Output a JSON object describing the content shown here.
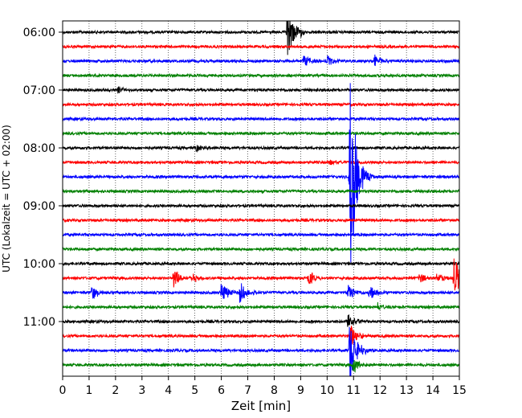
{
  "chart_data": {
    "type": "line",
    "title": "",
    "xlabel": "Zeit  [min]",
    "ylabel": "UTC (Lokalzeit = UTC + 02:00)",
    "xlim": [
      0,
      15
    ],
    "x_ticks": [
      "0",
      "1",
      "2",
      "3",
      "4",
      "5",
      "6",
      "7",
      "8",
      "9",
      "10",
      "11",
      "12",
      "13",
      "14",
      "15"
    ],
    "y_ticks": [
      "06:00",
      "07:00",
      "08:00",
      "09:00",
      "10:00",
      "11:00"
    ],
    "grid": "vertical dotted lines at each minute",
    "trace_interval_minutes": 15,
    "trace_color_cycle": [
      "#000000",
      "#ff0000",
      "#0000ff",
      "#008000"
    ],
    "traces": [
      {
        "start": "06:00",
        "color": "#000000",
        "events": [
          {
            "t": 8.5,
            "amp": 1.9
          },
          {
            "t": 9.0,
            "amp": 0.2
          }
        ]
      },
      {
        "start": "06:15",
        "color": "#ff0000",
        "events": []
      },
      {
        "start": "06:30",
        "color": "#0000ff",
        "events": [
          {
            "t": 9.1,
            "amp": 0.5
          },
          {
            "t": 10.0,
            "amp": 0.4
          },
          {
            "t": 11.8,
            "amp": 0.5
          }
        ]
      },
      {
        "start": "06:45",
        "color": "#008000",
        "events": []
      },
      {
        "start": "07:00",
        "color": "#000000",
        "events": [
          {
            "t": 2.1,
            "amp": 0.3
          }
        ]
      },
      {
        "start": "07:15",
        "color": "#ff0000",
        "events": []
      },
      {
        "start": "07:30",
        "color": "#0000ff",
        "events": []
      },
      {
        "start": "07:45",
        "color": "#008000",
        "events": []
      },
      {
        "start": "08:00",
        "color": "#000000",
        "events": [
          {
            "t": 5.0,
            "amp": 0.3
          }
        ]
      },
      {
        "start": "08:15",
        "color": "#ff0000",
        "events": [
          {
            "t": 10.0,
            "amp": 0.3
          }
        ]
      },
      {
        "start": "08:30",
        "color": "#0000ff",
        "events": [
          {
            "t": 10.85,
            "amp": 8.0
          }
        ]
      },
      {
        "start": "08:45",
        "color": "#008000",
        "events": []
      },
      {
        "start": "09:00",
        "color": "#000000",
        "events": []
      },
      {
        "start": "09:15",
        "color": "#ff0000",
        "events": []
      },
      {
        "start": "09:30",
        "color": "#0000ff",
        "events": []
      },
      {
        "start": "09:45",
        "color": "#008000",
        "events": []
      },
      {
        "start": "10:00",
        "color": "#000000",
        "events": []
      },
      {
        "start": "10:15",
        "color": "#ff0000",
        "events": [
          {
            "t": 4.2,
            "amp": 0.8
          },
          {
            "t": 4.9,
            "amp": 0.4
          },
          {
            "t": 9.3,
            "amp": 0.6
          },
          {
            "t": 13.5,
            "amp": 0.4
          },
          {
            "t": 14.15,
            "amp": 0.5
          },
          {
            "t": 14.8,
            "amp": 1.8
          }
        ]
      },
      {
        "start": "10:30",
        "color": "#0000ff",
        "events": [
          {
            "t": 1.1,
            "amp": 0.6
          },
          {
            "t": 6.0,
            "amp": 0.8
          },
          {
            "t": 6.7,
            "amp": 0.8
          },
          {
            "t": 10.8,
            "amp": 0.6
          },
          {
            "t": 11.6,
            "amp": 0.6
          }
        ]
      },
      {
        "start": "10:45",
        "color": "#008000",
        "events": [
          {
            "t": 11.9,
            "amp": 0.3
          }
        ]
      },
      {
        "start": "11:00",
        "color": "#000000",
        "events": [
          {
            "t": 10.8,
            "amp": 0.8
          }
        ]
      },
      {
        "start": "11:15",
        "color": "#ff0000",
        "events": [
          {
            "t": 10.9,
            "amp": 0.9
          }
        ]
      },
      {
        "start": "11:30",
        "color": "#0000ff",
        "events": [
          {
            "t": 10.85,
            "amp": 2.5
          }
        ]
      },
      {
        "start": "11:45",
        "color": "#008000",
        "events": [
          {
            "t": 11.0,
            "amp": 0.6
          }
        ]
      }
    ]
  }
}
